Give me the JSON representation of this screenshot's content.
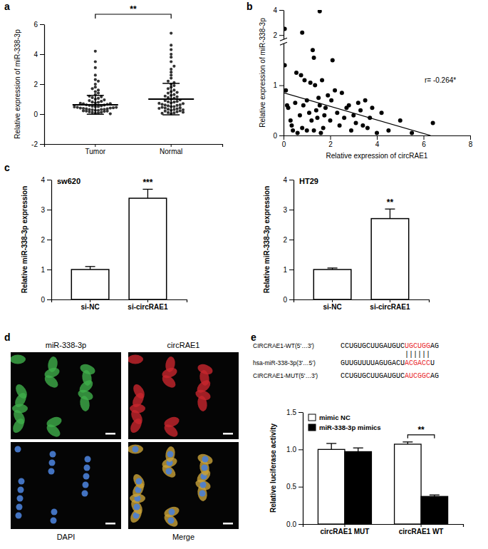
{
  "chart_data": [
    {
      "type": "strip",
      "panel": "a",
      "ylabel": "Relative expression of miR-338-3p",
      "categories": [
        "Tumor",
        "Normal"
      ],
      "points": [
        [
          0.05,
          0.08,
          0.1,
          0.12,
          0.15,
          0.18,
          0.2,
          0.2,
          0.22,
          0.25,
          0.25,
          0.28,
          0.3,
          0.3,
          0.32,
          0.35,
          0.35,
          0.38,
          0.4,
          0.4,
          0.42,
          0.45,
          0.45,
          0.48,
          0.5,
          0.5,
          0.52,
          0.55,
          0.58,
          0.6,
          0.62,
          0.65,
          0.68,
          0.7,
          0.72,
          0.75,
          0.78,
          0.8,
          0.85,
          0.9,
          0.95,
          1.0,
          1.05,
          1.1,
          1.15,
          1.2,
          1.3,
          1.4,
          1.5,
          1.6,
          1.7,
          1.8,
          2.0,
          2.2,
          2.3,
          2.6,
          3.1,
          3.5,
          4.2,
          0.02
        ],
        [
          0.03,
          0.08,
          0.1,
          0.15,
          0.2,
          0.22,
          0.25,
          0.3,
          0.32,
          0.35,
          0.4,
          0.42,
          0.45,
          0.5,
          0.5,
          0.55,
          0.58,
          0.6,
          0.62,
          0.65,
          0.7,
          0.72,
          0.75,
          0.8,
          0.82,
          0.85,
          0.9,
          0.95,
          1.0,
          1.05,
          1.1,
          1.15,
          1.2,
          1.25,
          1.3,
          1.4,
          1.45,
          1.5,
          1.6,
          1.7,
          1.8,
          1.9,
          2.0,
          2.1,
          2.2,
          2.4,
          2.6,
          2.8,
          3.0,
          3.2,
          3.5,
          3.8,
          4.0,
          4.3,
          4.6,
          5.4,
          0.05,
          0.12,
          0.28,
          0.38
        ]
      ],
      "mean": [
        0.62,
        1.0
      ],
      "sd": [
        0.63,
        1.05
      ],
      "ylim": [
        -2,
        6
      ],
      "yticks": [
        -2,
        0,
        2,
        4,
        6
      ],
      "significance": "**",
      "color": "#333333",
      "marker": "circle"
    },
    {
      "type": "scatter",
      "panel": "b",
      "xlabel": "Relative expression of circRAE1",
      "ylabel": "Relative expression of miR-338-3p",
      "x": [
        0.05,
        0.1,
        0.15,
        0.2,
        0.3,
        0.4,
        0.35,
        0.5,
        0.6,
        0.55,
        0.7,
        0.75,
        0.8,
        0.85,
        0.9,
        1.0,
        1.0,
        1.1,
        1.15,
        1.2,
        1.25,
        1.3,
        1.3,
        1.35,
        1.4,
        1.45,
        1.5,
        1.55,
        1.6,
        1.65,
        1.7,
        1.75,
        1.8,
        1.9,
        2.0,
        2.05,
        2.1,
        2.2,
        2.3,
        2.4,
        2.5,
        2.6,
        2.7,
        2.8,
        2.9,
        3.0,
        3.1,
        3.2,
        3.3,
        3.4,
        3.5,
        3.6,
        3.7,
        3.8,
        4.0,
        4.2,
        4.5,
        5.0,
        5.5,
        6.4,
        0.05,
        0.8,
        1.55
      ],
      "values": [
        1.4,
        0.9,
        0.6,
        0.55,
        0.3,
        0.1,
        0.2,
        0.65,
        0.05,
        1.25,
        0.4,
        1.2,
        0.15,
        0.6,
        1.1,
        0.7,
        0.1,
        0.45,
        1.05,
        0.3,
        1.7,
        1.55,
        0.1,
        1.0,
        0.5,
        0.35,
        0.75,
        0.6,
        0.05,
        1.1,
        0.15,
        0.4,
        0.55,
        0.8,
        0.3,
        0.7,
        1.5,
        0.9,
        0.45,
        0.2,
        0.85,
        0.35,
        0.55,
        0.6,
        0.1,
        0.4,
        0.25,
        0.65,
        0.5,
        0.2,
        0.7,
        0.15,
        0.35,
        0.55,
        0.05,
        0.45,
        0.1,
        0.3,
        0.05,
        0.25,
        2.5,
        2.2,
        3.9
      ],
      "xlim": [
        0,
        8
      ],
      "xticks": [
        0,
        2,
        4,
        6,
        8
      ],
      "ylim": [
        0,
        4
      ],
      "yticks": [
        0,
        1,
        2,
        4
      ],
      "y_break": 2,
      "fit": {
        "x": [
          0,
          6.3
        ],
        "values": [
          0.85,
          0
        ]
      },
      "annotation": "r= -0.264*",
      "color": "#000000",
      "marker": "circle"
    },
    {
      "type": "bar",
      "panel": "c",
      "title": "sw620",
      "ylabel": "Relative  miR-338-3p expression",
      "categories": [
        "si-NC",
        "si-circRAE1"
      ],
      "values": [
        1.0,
        3.38
      ],
      "errors": [
        0.1,
        0.3
      ],
      "ylim": [
        0,
        4
      ],
      "yticks": [
        0,
        1,
        2,
        3,
        4
      ],
      "color": "#ffffff",
      "significance": "***"
    },
    {
      "type": "bar",
      "title": "HT29",
      "ylabel": "Relative  miR-338-3p expression",
      "categories": [
        "si-NC",
        "si-circRAE1"
      ],
      "values": [
        1.0,
        2.7
      ],
      "errors": [
        0.05,
        0.32
      ],
      "ylim": [
        0,
        4
      ],
      "yticks": [
        0,
        1,
        2,
        3,
        4
      ],
      "color": "#ffffff",
      "significance": "**"
    },
    {
      "type": "bar",
      "ylabel": "Relative luciferase activity",
      "categories": [
        "circRAE1 MUT",
        "circRAE1 WT"
      ],
      "series": [
        {
          "name": "mimic NC",
          "color": "#ffffff",
          "values": [
            1.0,
            1.07
          ],
          "errors": [
            0.08,
            0.03
          ]
        },
        {
          "name": "miR-338-3p mimics",
          "color": "#000000",
          "values": [
            0.97,
            0.37
          ],
          "errors": [
            0.05,
            0.02
          ]
        }
      ],
      "ylim": [
        0,
        1.5
      ],
      "yticks": [
        {
          "value": 0,
          "label": "0.0"
        },
        {
          "value": 0.5,
          "label": "0.5"
        },
        {
          "value": 1,
          "label": "1.0"
        },
        {
          "value": 1.5,
          "label": "1.5"
        }
      ],
      "legend": "top-left",
      "significance": "**"
    }
  ],
  "image_panel": {
    "panel": "d",
    "labels": [
      "miR-338-3p",
      "circRAE1",
      "DAPI",
      "Merge"
    ]
  },
  "sequence_panel": {
    "panel": "e",
    "rows": [
      {
        "label": "CIRCRAE1-WT(5'…3')",
        "segments": [
          {
            "text": "CCUGUGCUUGAUGUC",
            "color": "#000000"
          },
          {
            "text": "UGCUGG",
            "color": "#e8262b"
          },
          {
            "text": "AG",
            "color": "#000000"
          }
        ]
      },
      {
        "label": "hsa-miR-338-3p(3'…5')",
        "segments": [
          {
            "text": "GUUGUUUUAGUGACU",
            "color": "#000000"
          },
          {
            "text": "ACGACC",
            "color": "#e8262b"
          },
          {
            "text": "U",
            "color": "#000000"
          }
        ]
      },
      {
        "label": "CIRCRAE1-MUT(5'…3')",
        "segments": [
          {
            "text": "CCUGUGCUUGAUGUC",
            "color": "#000000"
          },
          {
            "text": "AUCGGC",
            "color": "#e8262b"
          },
          {
            "text": "AG",
            "color": "#000000"
          }
        ]
      }
    ],
    "pairing": "||||||"
  }
}
